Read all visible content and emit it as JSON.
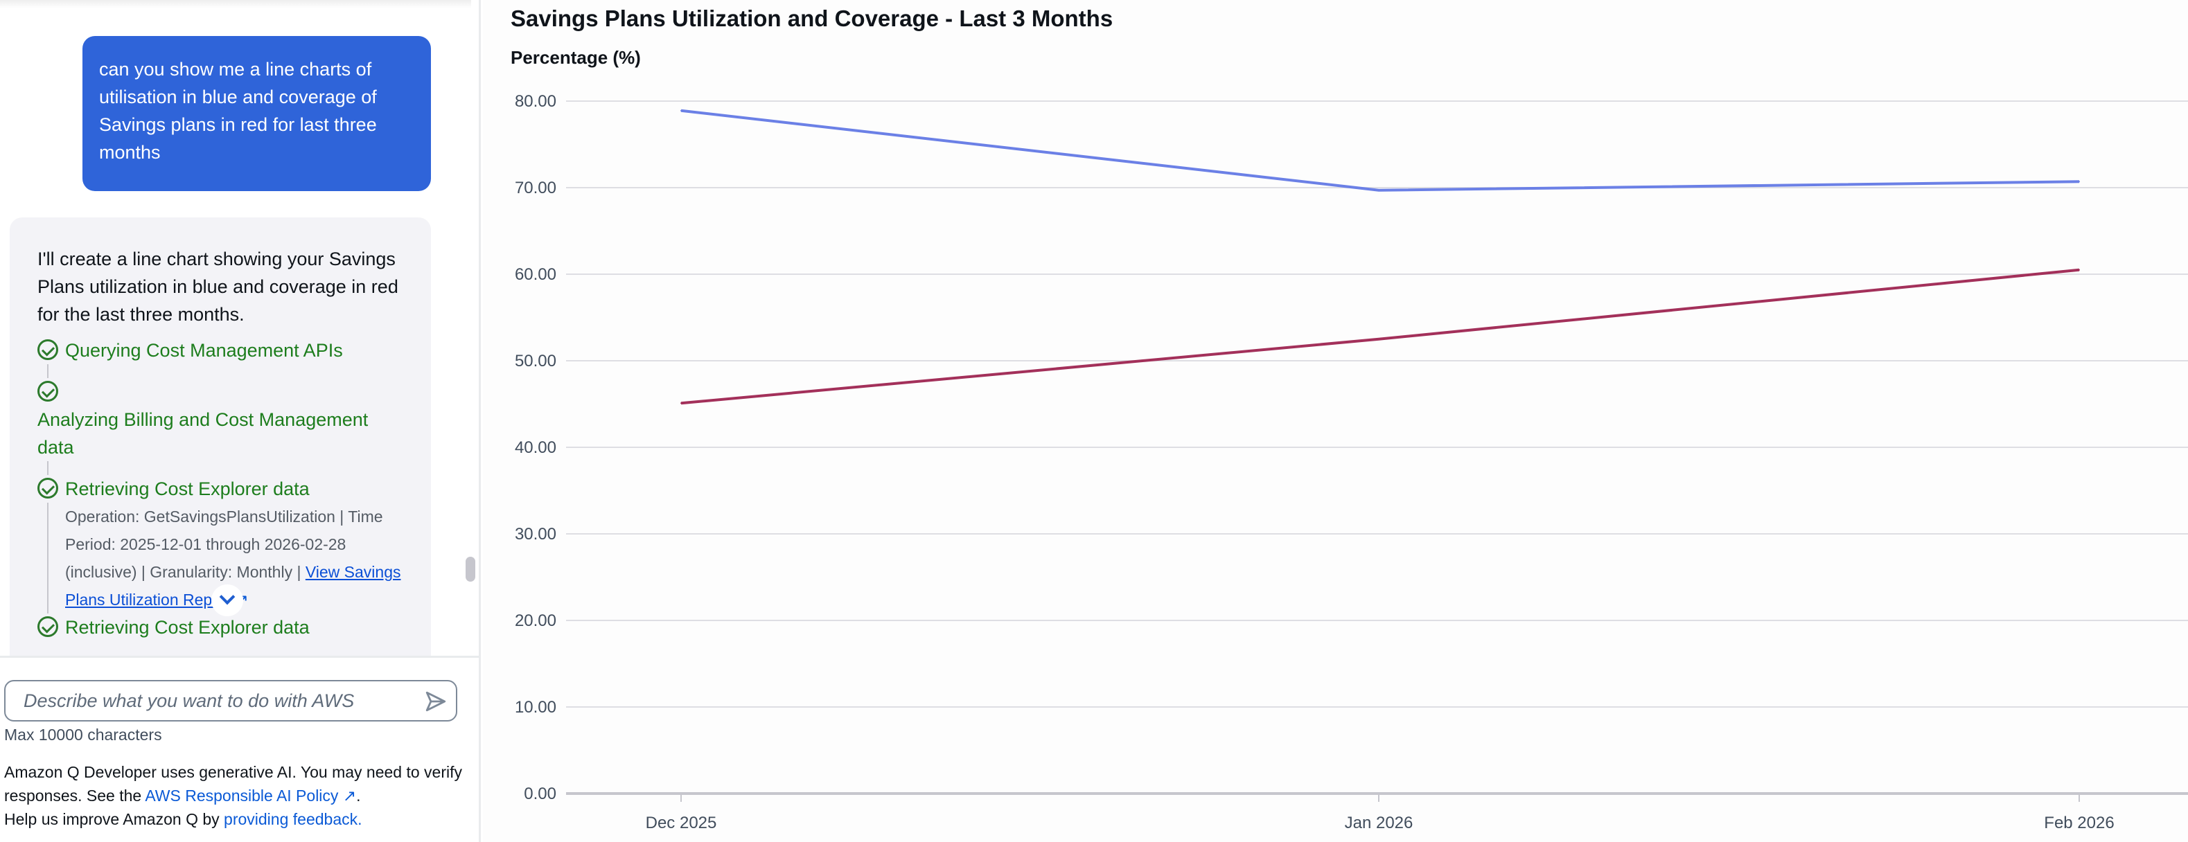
{
  "chat": {
    "user_message": "can you show me a line charts of utilisation in blue and coverage of Savings plans in red for last three months",
    "assistant_message": "I'll create a line chart showing your Savings Plans utilization in blue and coverage in red for the last three months.",
    "steps": [
      {
        "label": "Querying Cost Management APIs",
        "status": "done"
      },
      {
        "label": "Analyzing Billing and Cost Management data",
        "status": "done"
      },
      {
        "label": "Retrieving Cost Explorer data",
        "status": "done",
        "detail": "Operation: GetSavingsPlansUtilization | Time Period: 2025-12-01 through 2026-02-28 (inclusive) | Granularity: Monthly | ",
        "link": "View Savings Plans Utilization Report"
      },
      {
        "label": "Retrieving Cost Explorer data",
        "status": "done"
      }
    ],
    "input_placeholder": "Describe what you want to do with AWS",
    "max_chars": "Max 10000 characters",
    "disclaimer_1": "Amazon Q Developer uses generative AI. You may need to verify responses. See the ",
    "policy_link": "AWS Responsible AI Policy",
    "disclaimer_2": "Help us improve Amazon Q by ",
    "feedback_link": "providing feedback."
  },
  "chart_data": {
    "type": "line",
    "title": "Savings Plans Utilization and Coverage - Last 3 Months",
    "ylabel": "Percentage (%)",
    "xlabel": "",
    "categories": [
      "Dec 2025",
      "Jan 2026",
      "Feb 2026"
    ],
    "yticks": [
      "0.00",
      "10.00",
      "20.00",
      "30.00",
      "40.00",
      "50.00",
      "60.00",
      "70.00",
      "80.00"
    ],
    "ylim": [
      0,
      80
    ],
    "grid": true,
    "series": [
      {
        "values": [
          78.9,
          69.7,
          70.7
        ],
        "color": "#6b80e6"
      },
      {
        "values": [
          45.1,
          52.5,
          60.5
        ],
        "color": "#a3305a"
      }
    ]
  }
}
